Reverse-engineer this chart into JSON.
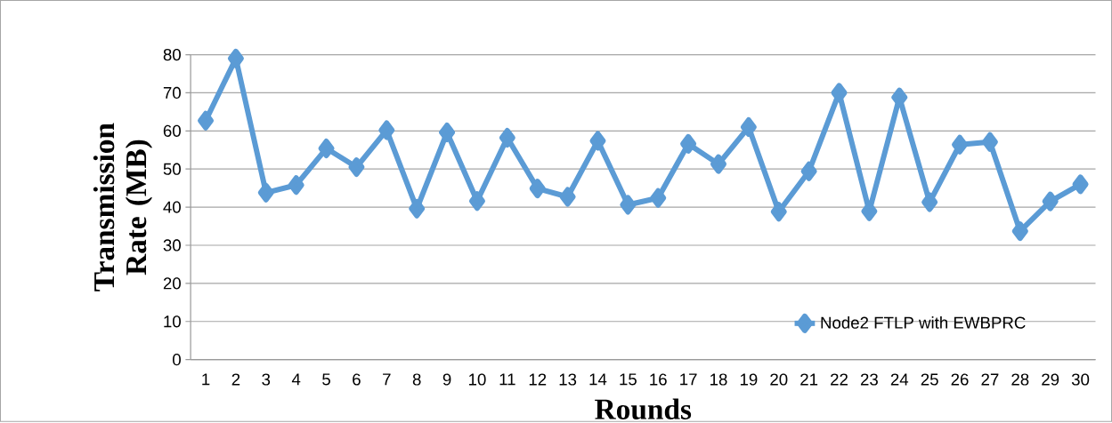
{
  "chart_data": {
    "type": "line",
    "xlabel": "Rounds",
    "ylabel": "Transmission Rate (MB)",
    "categories": [
      "1",
      "2",
      "3",
      "4",
      "5",
      "6",
      "7",
      "8",
      "9",
      "10",
      "11",
      "12",
      "13",
      "14",
      "15",
      "16",
      "17",
      "18",
      "19",
      "20",
      "21",
      "22",
      "23",
      "24",
      "25",
      "26",
      "27",
      "28",
      "29",
      "30"
    ],
    "series": [
      {
        "name": "Node2 FTLP with EWBPRC",
        "color": "#5b9bd5",
        "values": [
          62.7,
          79,
          43.8,
          45.8,
          55.4,
          50.5,
          60.2,
          39.6,
          59.6,
          41.6,
          58.2,
          44.9,
          42.7,
          57.4,
          40.6,
          42.4,
          56.6,
          51.3,
          61,
          38.8,
          49.4,
          70,
          38.9,
          68.8,
          41.3,
          56.4,
          57.1,
          33.7,
          41.5,
          46
        ]
      }
    ],
    "ylim": [
      0,
      80
    ],
    "yticks": [
      0,
      10,
      20,
      30,
      40,
      50,
      60,
      70,
      80
    ],
    "grid": "y",
    "legend": "bottom right",
    "marker": "diamond",
    "line_style": "solid"
  }
}
